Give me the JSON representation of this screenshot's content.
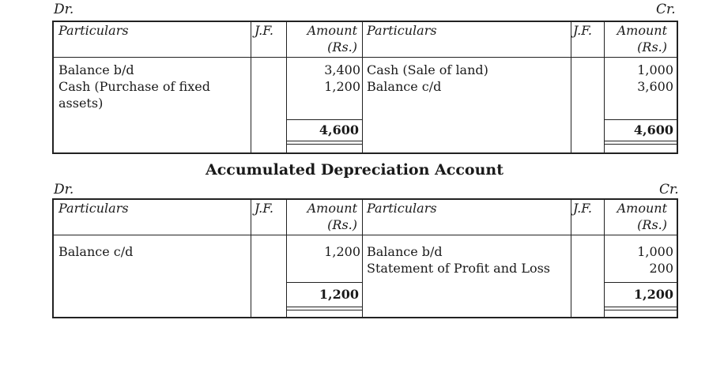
{
  "ledger1": {
    "dr": "Dr.",
    "cr": "Cr.",
    "headers": {
      "particulars_left": "Particulars",
      "jf_left": "J.F.",
      "amount_left_1": "Amount",
      "amount_left_2": "(Rs.)",
      "particulars_right": "Particulars",
      "jf_right": "J.F.",
      "amount_right_1": "Amount",
      "amount_right_2": "(Rs.)"
    },
    "debit": [
      {
        "particulars": "Balance b/d",
        "amount": "3,400"
      },
      {
        "particulars": "Cash (Purchase of fixed",
        "amount": "1,200"
      },
      {
        "particulars": "assets)",
        "amount": ""
      }
    ],
    "credit": [
      {
        "particulars": "Cash (Sale of land)",
        "amount": "1,000"
      },
      {
        "particulars": "Balance c/d",
        "amount": "3,600"
      }
    ],
    "debit_total": "4,600",
    "credit_total": "4,600"
  },
  "ledger2": {
    "title": "Accumulated Depreciation Account",
    "dr": "Dr.",
    "cr": "Cr.",
    "headers": {
      "particulars_left": "Particulars",
      "jf_left": "J.F.",
      "amount_left_1": "Amount",
      "amount_left_2": "(Rs.)",
      "particulars_right": "Particulars",
      "jf_right": "J.F.",
      "amount_right_1": "Amount",
      "amount_right_2": "(Rs.)"
    },
    "debit": [
      {
        "particulars": "Balance c/d",
        "amount": "1,200"
      }
    ],
    "credit": [
      {
        "particulars": "Balance b/d",
        "amount": "1,000"
      },
      {
        "particulars": "Statement of Profit and Loss",
        "amount": "200"
      }
    ],
    "debit_total": "1,200",
    "credit_total": "1,200"
  }
}
